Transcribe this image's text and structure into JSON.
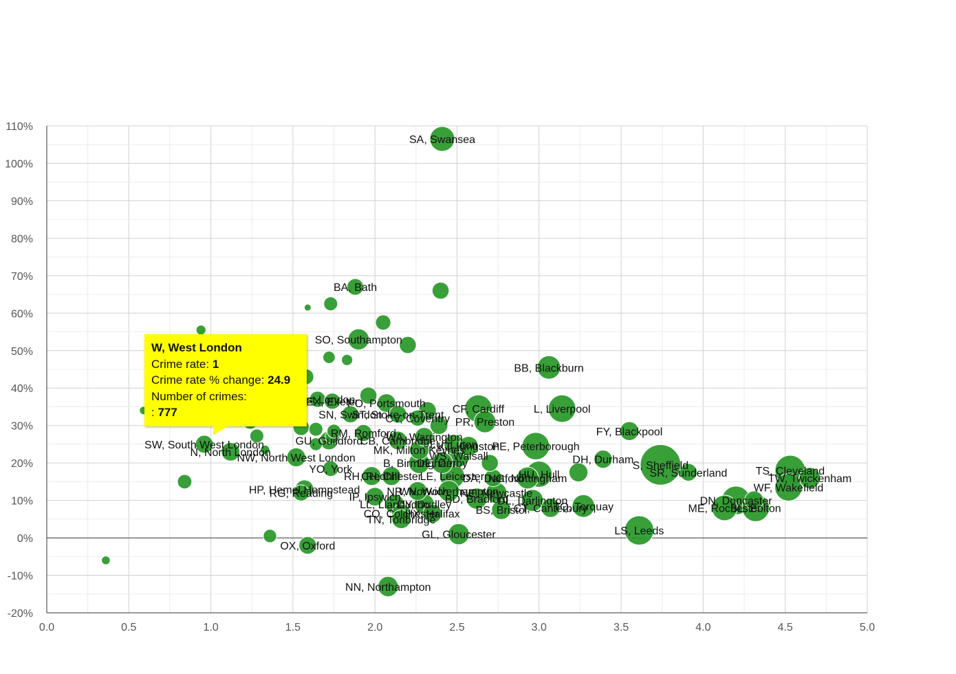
{
  "chart_data": {
    "type": "scatter",
    "title": "",
    "xlabel": "",
    "ylabel": "",
    "xlim": [
      0,
      5
    ],
    "ylim": [
      -20,
      110
    ],
    "x_ticks": [
      "0.0",
      "0.5",
      "1.0",
      "1.5",
      "2.0",
      "2.5",
      "3.0",
      "3.5",
      "4.0",
      "4.5",
      "5.0"
    ],
    "y_ticks": [
      "110%",
      "100%",
      "90%",
      "80%",
      "70%",
      "60%",
      "50%",
      "40%",
      "30%",
      "20%",
      "10%",
      "0%",
      "-10%",
      "-20%"
    ],
    "grid": true,
    "bubble_color": "#2e9a2e",
    "points": [
      {
        "x": 2.41,
        "y": 106.5,
        "size": 900,
        "label": "SA, Swansea"
      },
      {
        "x": 1.88,
        "y": 67,
        "size": 400,
        "label": "BA, Bath"
      },
      {
        "x": 2.4,
        "y": 66,
        "size": 420,
        "label": ""
      },
      {
        "x": 1.73,
        "y": 62.5,
        "size": 280,
        "label": ""
      },
      {
        "x": 1.59,
        "y": 61.5,
        "size": 70,
        "label": ""
      },
      {
        "x": 2.05,
        "y": 57.5,
        "size": 340,
        "label": ""
      },
      {
        "x": 0.94,
        "y": 55.5,
        "size": 140,
        "label": ""
      },
      {
        "x": 1.9,
        "y": 53,
        "size": 650,
        "label": "SO, Southampton"
      },
      {
        "x": 2.2,
        "y": 51.5,
        "size": 420,
        "label": ""
      },
      {
        "x": 1.72,
        "y": 48.2,
        "size": 220,
        "label": ""
      },
      {
        "x": 1.83,
        "y": 47.5,
        "size": 180,
        "label": ""
      },
      {
        "x": 3.06,
        "y": 45.5,
        "size": 800,
        "label": "BB, Blackburn"
      },
      {
        "x": 1.58,
        "y": 43,
        "size": 350,
        "label": ""
      },
      {
        "x": 1.96,
        "y": 38,
        "size": 420,
        "label": ""
      },
      {
        "x": 1.65,
        "y": 37,
        "size": 380,
        "label": "E, East London"
      },
      {
        "x": 1.74,
        "y": 36.5,
        "size": 380,
        "label": "EX, Exeter"
      },
      {
        "x": 2.07,
        "y": 36,
        "size": 500,
        "label": "PO, Portsmouth"
      },
      {
        "x": 2.63,
        "y": 34.5,
        "size": 1100,
        "label": "CF, Cardiff"
      },
      {
        "x": 3.14,
        "y": 34.5,
        "size": 1100,
        "label": "L, Liverpool"
      },
      {
        "x": 0.59,
        "y": 34,
        "size": 100,
        "label": ""
      },
      {
        "x": 2.32,
        "y": 34,
        "size": 450,
        "label": ""
      },
      {
        "x": 2.14,
        "y": 33,
        "size": 450,
        "label": "ST, Stoke-on-Trent"
      },
      {
        "x": 1.85,
        "y": 33,
        "size": 420,
        "label": "SN, Swindon"
      },
      {
        "x": 2.26,
        "y": 32,
        "size": 380,
        "label": "CV, Coventry"
      },
      {
        "x": 1.24,
        "y": 31,
        "size": 320,
        "label": ""
      },
      {
        "x": 2.67,
        "y": 31,
        "size": 700,
        "label": "PR, Preston"
      },
      {
        "x": 2.39,
        "y": 30,
        "size": 460,
        "label": ""
      },
      {
        "x": 1.55,
        "y": 29.5,
        "size": 380,
        "label": ""
      },
      {
        "x": 1.64,
        "y": 29,
        "size": 280,
        "label": ""
      },
      {
        "x": 1.75,
        "y": 28.5,
        "size": 280,
        "label": ""
      },
      {
        "x": 3.55,
        "y": 28.5,
        "size": 520,
        "label": "FY, Blackpool"
      },
      {
        "x": 1.93,
        "y": 28,
        "size": 420,
        "label": "RM, Romford"
      },
      {
        "x": 1.28,
        "y": 27.2,
        "size": 280,
        "label": ""
      },
      {
        "x": 1.74,
        "y": 27,
        "size": 300,
        "label": ""
      },
      {
        "x": 2.3,
        "y": 27,
        "size": 500,
        "label": "WA, Warrington"
      },
      {
        "x": 1.72,
        "y": 26,
        "size": 500,
        "label": "GU, Guildford"
      },
      {
        "x": 2.14,
        "y": 26,
        "size": 500,
        "label": "CB, Cambridge"
      },
      {
        "x": 1.64,
        "y": 25,
        "size": 240,
        "label": ""
      },
      {
        "x": 2.48,
        "y": 25,
        "size": 550,
        "label": "LU, Luton"
      },
      {
        "x": 2.57,
        "y": 24.5,
        "size": 550,
        "label": "KT, Kingston"
      },
      {
        "x": 2.98,
        "y": 24.5,
        "size": 1100,
        "label": "PE, Peterborough"
      },
      {
        "x": 2.27,
        "y": 23.5,
        "size": 550,
        "label": "MK, Milton Keynes"
      },
      {
        "x": 0.96,
        "y": 25,
        "size": 500,
        "label": "SW, South West London",
        "highlight": true
      },
      {
        "x": 1.12,
        "y": 23,
        "size": 500,
        "label": "N, North London"
      },
      {
        "x": 1.33,
        "y": 23.5,
        "size": 130,
        "label": ""
      },
      {
        "x": 2.51,
        "y": 22,
        "size": 750,
        "label": "WS, Walsall"
      },
      {
        "x": 1.52,
        "y": 21.5,
        "size": 520,
        "label": "NW, North West London"
      },
      {
        "x": 3.39,
        "y": 21,
        "size": 480,
        "label": "DH, Durham"
      },
      {
        "x": 2.7,
        "y": 20,
        "size": 420,
        "label": ""
      },
      {
        "x": 2.27,
        "y": 20,
        "size": 650,
        "label": "B, Birmingham"
      },
      {
        "x": 2.41,
        "y": 20,
        "size": 650,
        "label": "DE, Derby"
      },
      {
        "x": 3.74,
        "y": 19.5,
        "size": 2400,
        "label": "S, Sheffield"
      },
      {
        "x": 4.53,
        "y": 18,
        "size": 1350,
        "label": "TS, Cleveland"
      },
      {
        "x": 1.73,
        "y": 18.5,
        "size": 360,
        "label": "YO, York"
      },
      {
        "x": 3.24,
        "y": 17.5,
        "size": 520,
        "label": ""
      },
      {
        "x": 3.0,
        "y": 17,
        "size": 1000,
        "label": "HU, Hull"
      },
      {
        "x": 3.91,
        "y": 17.5,
        "size": 450,
        "label": "SR, Sunderland"
      },
      {
        "x": 4.65,
        "y": 16,
        "size": 650,
        "label": "TW, Twickenham"
      },
      {
        "x": 1.98,
        "y": 16.5,
        "size": 520,
        "label": "RH, Redhill"
      },
      {
        "x": 2.1,
        "y": 16.5,
        "size": 520,
        "label": "CH, Chester"
      },
      {
        "x": 2.47,
        "y": 16.5,
        "size": 900,
        "label": "LE, Leicester"
      },
      {
        "x": 2.72,
        "y": 16,
        "size": 450,
        "label": "DA, Dartford"
      },
      {
        "x": 2.93,
        "y": 16,
        "size": 700,
        "label": "NG, Nottingham"
      },
      {
        "x": 0.84,
        "y": 15,
        "size": 300,
        "label": ""
      },
      {
        "x": 1.57,
        "y": 13,
        "size": 500,
        "label": "HP, Hemel Hempstead"
      },
      {
        "x": 4.52,
        "y": 13.5,
        "size": 1100,
        "label": "WF, Wakefield"
      },
      {
        "x": 1.55,
        "y": 12,
        "size": 380,
        "label": "RG, Reading"
      },
      {
        "x": 2.26,
        "y": 12.5,
        "size": 520,
        "label": "NR, Norwich"
      },
      {
        "x": 2.45,
        "y": 12.5,
        "size": 650,
        "label": "WV, Wolverhampton"
      },
      {
        "x": 2.74,
        "y": 12,
        "size": 650,
        "label": "NE, Newcastle"
      },
      {
        "x": 2.0,
        "y": 11,
        "size": 500,
        "label": "IP, Ipswich"
      },
      {
        "x": 2.62,
        "y": 10.5,
        "size": 650,
        "label": "BD, Bradford"
      },
      {
        "x": 2.96,
        "y": 10,
        "size": 700,
        "label": "DL, Darlington"
      },
      {
        "x": 4.2,
        "y": 10,
        "size": 1200,
        "label": "DN, Doncaster"
      },
      {
        "x": 4.31,
        "y": 10,
        "size": 520,
        "label": ""
      },
      {
        "x": 2.12,
        "y": 9,
        "size": 550,
        "label": "LL, Llandudno"
      },
      {
        "x": 2.3,
        "y": 9,
        "size": 600,
        "label": "DY, Dudley"
      },
      {
        "x": 3.27,
        "y": 8.5,
        "size": 750,
        "label": "TQ, Torquay"
      },
      {
        "x": 3.07,
        "y": 8,
        "size": 520,
        "label": "CT, Canterbury"
      },
      {
        "x": 4.13,
        "y": 8,
        "size": 950,
        "label": "ME, Rochester"
      },
      {
        "x": 4.32,
        "y": 8,
        "size": 1100,
        "label": "BL, Bolton"
      },
      {
        "x": 2.77,
        "y": 7.5,
        "size": 550,
        "label": "BS, Bristol"
      },
      {
        "x": 2.16,
        "y": 6.5,
        "size": 520,
        "label": "CO, Colchester"
      },
      {
        "x": 2.35,
        "y": 6.5,
        "size": 520,
        "label": "HX, Halifax"
      },
      {
        "x": 2.16,
        "y": 5,
        "size": 520,
        "label": "TN, Tonbridge"
      },
      {
        "x": 3.61,
        "y": 2,
        "size": 1250,
        "label": "LS, Leeds"
      },
      {
        "x": 2.51,
        "y": 1,
        "size": 650,
        "label": "GL, Gloucester"
      },
      {
        "x": 1.36,
        "y": 0.5,
        "size": 260,
        "label": ""
      },
      {
        "x": 1.59,
        "y": -2,
        "size": 450,
        "label": "OX, Oxford"
      },
      {
        "x": 2.08,
        "y": -13,
        "size": 600,
        "label": "NN, Northampton"
      },
      {
        "x": 0.36,
        "y": -6,
        "size": 110,
        "label": ""
      }
    ]
  },
  "tooltip": {
    "title": "W, West London",
    "crime_rate_label": "Crime rate:",
    "crime_rate_value": "1",
    "change_label": "Crime rate % change:",
    "change_value": "24.9",
    "crimes_label": "Number of crimes:",
    "crimes_value_prefix": ":",
    "crimes_value": "777"
  }
}
